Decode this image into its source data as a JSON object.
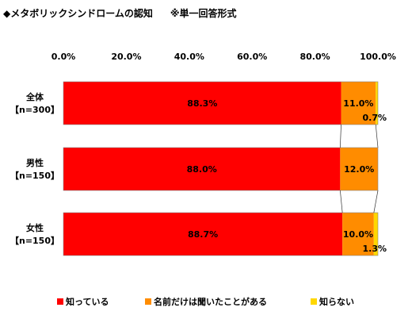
{
  "title": "◆メタボリックシンドロームの認知",
  "subtitle": "※単一回答形式",
  "chart_data": {
    "type": "bar",
    "orientation": "horizontal",
    "stacked": true,
    "xlim": [
      0,
      100
    ],
    "ticks": [
      "0.0%",
      "20.0%",
      "40.0%",
      "60.0%",
      "80.0%",
      "100.0%"
    ],
    "tick_values": [
      0,
      20,
      40,
      60,
      80,
      100
    ],
    "categories": [
      {
        "name": "全体",
        "n": "【n=300】"
      },
      {
        "name": "男性",
        "n": "【n=150】"
      },
      {
        "name": "女性",
        "n": "【n=150】"
      }
    ],
    "series": [
      {
        "name": "知っている",
        "color": "#ff0000",
        "values": [
          88.3,
          88.0,
          88.7
        ],
        "labels": [
          "88.3%",
          "88.0%",
          "88.7%"
        ]
      },
      {
        "name": "名前だけは聞いたことがある",
        "color": "#ff8c00",
        "values": [
          11.0,
          12.0,
          10.0
        ],
        "labels": [
          "11.0%",
          "12.0%",
          "10.0%"
        ]
      },
      {
        "name": "知らない",
        "color": "#ffd700",
        "values": [
          0.7,
          0.0,
          1.3
        ],
        "labels": [
          "0.7%",
          "",
          "1.3%"
        ]
      }
    ],
    "legend_position": "bottom",
    "grid": false
  }
}
